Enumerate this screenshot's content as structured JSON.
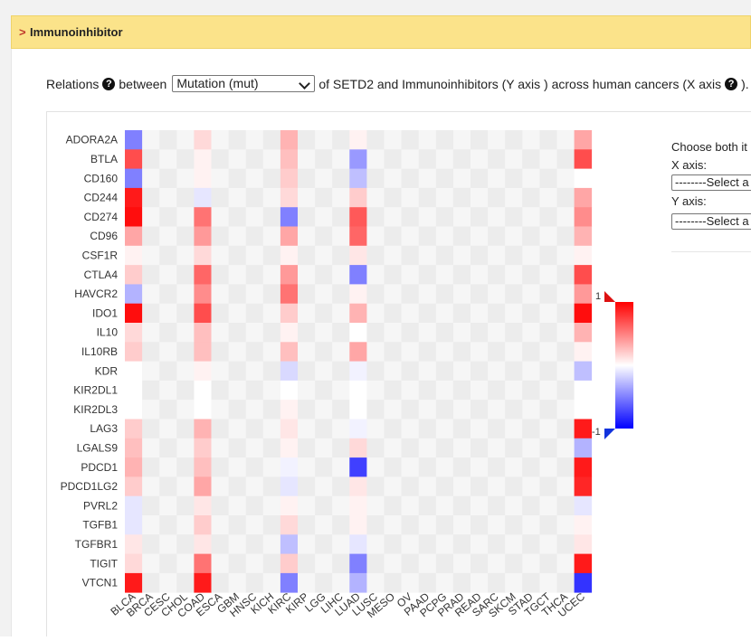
{
  "panel": {
    "chevron": ">",
    "title": "Immunoinhibitor"
  },
  "relations": {
    "prefix": "Relations",
    "between": "between",
    "selected": "Mutation (mut)",
    "suffix": "of SETD2 and Immunoinhibitors (Y axis ) across human cancers (X axis",
    "end": ").",
    "help_glyph": "?"
  },
  "side": {
    "choose": "Choose both it",
    "x_label": "X axis:",
    "x_select": "--------Select a",
    "y_label": "Y axis:",
    "y_select": "--------Select a"
  },
  "chart_data": {
    "type": "heatmap",
    "rows": [
      "ADORA2A",
      "BTLA",
      "CD160",
      "CD244",
      "CD274",
      "CD96",
      "CSF1R",
      "CTLA4",
      "HAVCR2",
      "IDO1",
      "IL10",
      "IL10RB",
      "KDR",
      "KIR2DL1",
      "KIR2DL3",
      "LAG3",
      "LGALS9",
      "PDCD1",
      "PDCD1LG2",
      "PVRL2",
      "TGFB1",
      "TGFBR1",
      "TIGIT",
      "VTCN1"
    ],
    "columns": [
      "BLCA",
      "BRCA",
      "CESC",
      "CHOL",
      "COAD",
      "ESCA",
      "GBM",
      "HNSC",
      "KICH",
      "KIRC",
      "KIRP",
      "LGG",
      "LIHC",
      "LUAD",
      "LUSC",
      "MESO",
      "OV",
      "PAAD",
      "PCPG",
      "PRAD",
      "READ",
      "SARC",
      "SKCM",
      "STAD",
      "TGCT",
      "THCA",
      "UCEC"
    ],
    "colorbar": {
      "max_label": "1",
      "min_label": "-1",
      "high_color": "#ff0000",
      "mid_color": "#ffffff",
      "low_color": "#0000ff"
    },
    "values": {
      "BLCA": [
        -0.5,
        0.7,
        -0.5,
        0.9,
        0.95,
        0.35,
        0.05,
        0.2,
        -0.3,
        0.95,
        0.15,
        0.2,
        0.0,
        0.0,
        0.0,
        0.2,
        0.25,
        0.3,
        0.2,
        -0.1,
        -0.1,
        0.1,
        0.15,
        0.9
      ],
      "COAD": [
        0.15,
        0.05,
        0.05,
        -0.1,
        0.55,
        0.4,
        0.15,
        0.6,
        0.45,
        0.7,
        0.25,
        0.25,
        0.05,
        0.0,
        0.0,
        0.3,
        0.2,
        0.25,
        0.35,
        0.1,
        0.2,
        0.1,
        0.55,
        0.9
      ],
      "KIRC": [
        0.3,
        0.25,
        0.2,
        0.15,
        -0.5,
        0.35,
        0.05,
        0.4,
        0.55,
        0.2,
        0.05,
        0.25,
        -0.15,
        0.0,
        0.05,
        0.1,
        0.05,
        -0.05,
        -0.1,
        0.05,
        0.15,
        -0.25,
        0.2,
        -0.5
      ],
      "LUAD": [
        0.05,
        -0.4,
        -0.25,
        0.2,
        0.65,
        0.6,
        0.1,
        -0.5,
        0.05,
        0.3,
        0.0,
        0.35,
        -0.05,
        0.0,
        0.0,
        -0.05,
        0.15,
        -0.75,
        0.1,
        0.05,
        0.05,
        -0.1,
        -0.5,
        -0.3
      ],
      "UCEC": [
        0.35,
        0.7,
        0.0,
        0.35,
        0.45,
        0.3,
        0.05,
        0.7,
        0.4,
        0.95,
        0.3,
        0.05,
        -0.25,
        0.0,
        0.0,
        0.9,
        -0.3,
        0.9,
        0.85,
        -0.1,
        0.05,
        0.1,
        0.9,
        -0.8
      ]
    },
    "default_value": 0.0
  }
}
